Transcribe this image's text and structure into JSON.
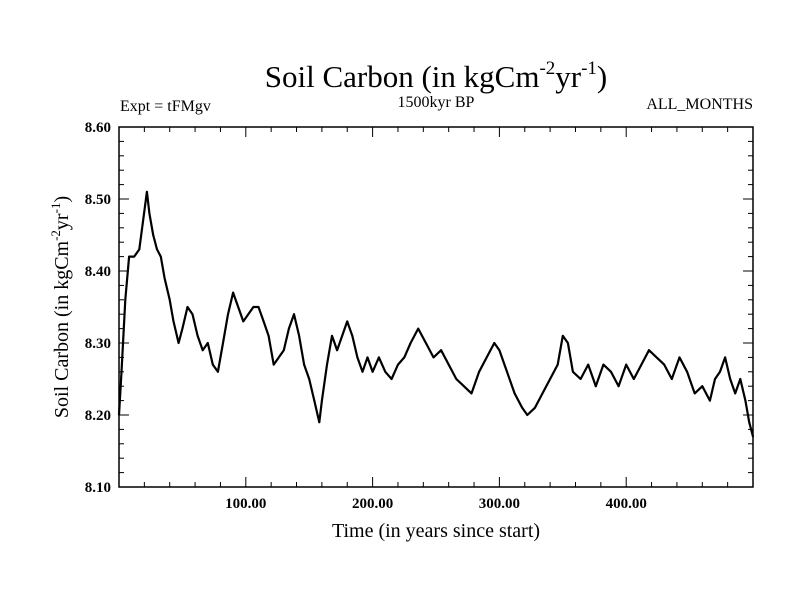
{
  "chart_data": {
    "type": "line",
    "title_main": "Soil Carbon (in kgCm",
    "title_sup1": "-2",
    "title_mid": "yr",
    "title_sup2": "-1",
    "title_end": ")",
    "expt_label": "Expt = tFMgv",
    "period_label": "1500kyr BP",
    "months_label": "ALL_MONTHS",
    "xlabel": "Time (in years since start)",
    "ylabel_main": "Soil Carbon (in kgCm",
    "ylabel_sup1": "-2",
    "ylabel_mid": "yr",
    "ylabel_sup2": "-1",
    "ylabel_end": ")",
    "xlim": [
      0,
      500
    ],
    "ylim": [
      8.1,
      8.6
    ],
    "xticks": [
      100,
      200,
      300,
      400
    ],
    "xtick_labels": [
      "100.00",
      "200.00",
      "300.00",
      "400.00"
    ],
    "yticks": [
      8.1,
      8.2,
      8.3,
      8.4,
      8.5,
      8.6
    ],
    "ytick_labels": [
      "8.10",
      "8.20",
      "8.30",
      "8.40",
      "8.50",
      "8.60"
    ],
    "grid": false,
    "series": [
      {
        "color": "#000000",
        "x": [
          0,
          2,
          5,
          8,
          12,
          16,
          19,
          22,
          24,
          27,
          30,
          33,
          36,
          40,
          43,
          47,
          50,
          54,
          58,
          62,
          66,
          70,
          74,
          78,
          82,
          86,
          90,
          94,
          98,
          102,
          106,
          110,
          114,
          118,
          122,
          126,
          130,
          134,
          138,
          142,
          146,
          150,
          154,
          158,
          160,
          164,
          168,
          172,
          176,
          180,
          184,
          188,
          192,
          196,
          200,
          205,
          210,
          215,
          220,
          225,
          230,
          236,
          242,
          248,
          254,
          260,
          266,
          272,
          278,
          284,
          290,
          296,
          300,
          306,
          312,
          318,
          322,
          328,
          334,
          340,
          346,
          350,
          354,
          358,
          364,
          370,
          376,
          382,
          388,
          394,
          400,
          406,
          412,
          418,
          424,
          430,
          436,
          442,
          448,
          454,
          460,
          466,
          470,
          474,
          478,
          482,
          486,
          490,
          494,
          497,
          500
        ],
        "y": [
          8.2,
          8.26,
          8.36,
          8.42,
          8.42,
          8.43,
          8.47,
          8.51,
          8.48,
          8.45,
          8.43,
          8.42,
          8.39,
          8.36,
          8.33,
          8.3,
          8.32,
          8.35,
          8.34,
          8.31,
          8.29,
          8.3,
          8.27,
          8.26,
          8.3,
          8.34,
          8.37,
          8.35,
          8.33,
          8.34,
          8.35,
          8.35,
          8.33,
          8.31,
          8.27,
          8.28,
          8.29,
          8.32,
          8.34,
          8.31,
          8.27,
          8.25,
          8.22,
          8.19,
          8.22,
          8.27,
          8.31,
          8.29,
          8.31,
          8.33,
          8.31,
          8.28,
          8.26,
          8.28,
          8.26,
          8.28,
          8.26,
          8.25,
          8.27,
          8.28,
          8.3,
          8.32,
          8.3,
          8.28,
          8.29,
          8.27,
          8.25,
          8.24,
          8.23,
          8.26,
          8.28,
          8.3,
          8.29,
          8.26,
          8.23,
          8.21,
          8.2,
          8.21,
          8.23,
          8.25,
          8.27,
          8.31,
          8.3,
          8.26,
          8.25,
          8.27,
          8.24,
          8.27,
          8.26,
          8.24,
          8.27,
          8.25,
          8.27,
          8.29,
          8.28,
          8.27,
          8.25,
          8.28,
          8.26,
          8.23,
          8.24,
          8.22,
          8.25,
          8.26,
          8.28,
          8.25,
          8.23,
          8.25,
          8.22,
          8.19,
          8.17
        ]
      }
    ]
  }
}
